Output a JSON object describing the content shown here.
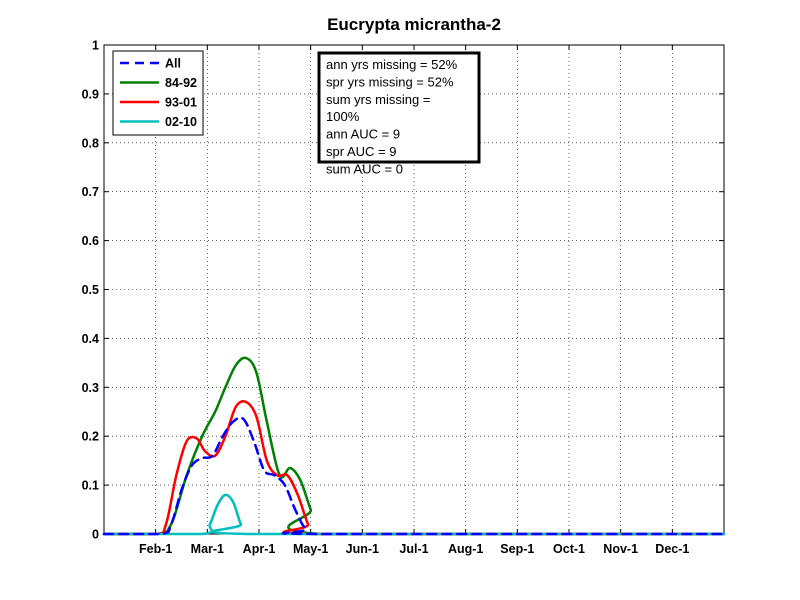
{
  "chart_data": {
    "type": "line",
    "title": "Eucrypta micrantha-2",
    "xlabel": "",
    "ylabel": "",
    "ylim": [
      0,
      1
    ],
    "xlim": [
      0,
      12
    ],
    "grid": true,
    "legend_placement": "top-left",
    "y_ticks": [
      "0",
      "0.1",
      "0.2",
      "0.3",
      "0.4",
      "0.5",
      "0.6",
      "0.7",
      "0.8",
      "0.9",
      "1"
    ],
    "x_tick_labels": [
      "Feb-1",
      "Mar-1",
      "Apr-1",
      "May-1",
      "Jun-1",
      "Jul-1",
      "Aug-1",
      "Sep-1",
      "Oct-1",
      "Nov-1",
      "Dec-1"
    ],
    "x_units": "months from Jan-1 (tick labels at month starts)",
    "series": [
      {
        "name": "All",
        "color": "#0000ff",
        "style": "dashed",
        "x": [
          0,
          1.1,
          1.3,
          1.5,
          1.7,
          1.9,
          2.1,
          2.3,
          2.5,
          2.7,
          2.9,
          3.1,
          3.3,
          3.5,
          3.7,
          3.9,
          4.1,
          12
        ],
        "y": [
          0,
          0,
          0.02,
          0.09,
          0.14,
          0.155,
          0.16,
          0.2,
          0.23,
          0.235,
          0.19,
          0.13,
          0.12,
          0.1,
          0.05,
          0.01,
          0,
          0
        ]
      },
      {
        "name": "84-92",
        "color": "#008000",
        "style": "solid",
        "x": [
          0,
          1.0,
          1.3,
          1.6,
          1.9,
          2.15,
          2.35,
          2.55,
          2.75,
          2.95,
          3.15,
          3.4,
          3.6,
          3.8,
          4.0,
          4.2,
          12
        ],
        "y": [
          0,
          0,
          0.02,
          0.12,
          0.2,
          0.25,
          0.3,
          0.345,
          0.36,
          0.33,
          0.23,
          0.12,
          0.135,
          0.11,
          0.05,
          0,
          0
        ]
      },
      {
        "name": "93-01",
        "color": "#ff0000",
        "style": "solid",
        "x": [
          0,
          1.0,
          1.2,
          1.4,
          1.6,
          1.8,
          1.95,
          2.15,
          2.35,
          2.55,
          2.75,
          2.95,
          3.15,
          3.35,
          3.55,
          3.75,
          3.95,
          4.1,
          12
        ],
        "y": [
          0,
          0,
          0.02,
          0.12,
          0.19,
          0.195,
          0.17,
          0.16,
          0.2,
          0.26,
          0.27,
          0.24,
          0.15,
          0.12,
          0.12,
          0.08,
          0.02,
          0,
          0
        ]
      },
      {
        "name": "02-10",
        "color": "#00bfbf",
        "style": "solid",
        "x": [
          0,
          1.9,
          2.05,
          2.2,
          2.35,
          2.5,
          2.65,
          2.8,
          12
        ],
        "y": [
          0,
          0,
          0.02,
          0.06,
          0.08,
          0.065,
          0.02,
          0,
          0
        ]
      }
    ],
    "annotation": {
      "lines": [
        "ann yrs missing = 52%",
        "spr yrs missing = 52%",
        "sum yrs missing =",
        "100%",
        "ann AUC = 9",
        "spr AUC = 9",
        "sum AUC = 0"
      ],
      "placement": "top-center"
    }
  }
}
